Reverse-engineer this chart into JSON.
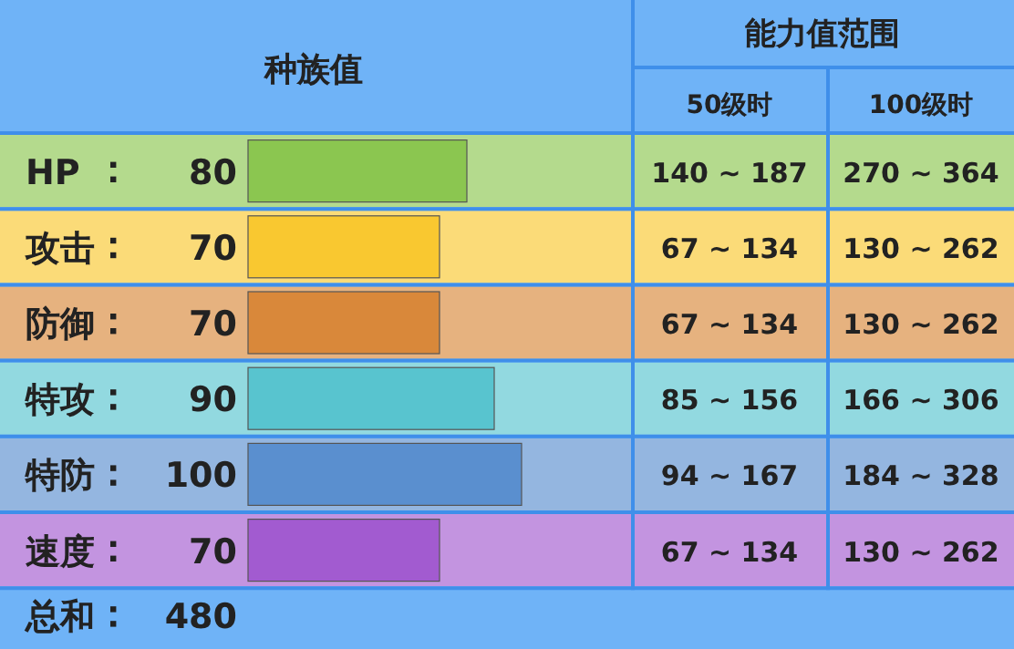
{
  "chart_data": {
    "type": "bar",
    "orientation": "horizontal",
    "title": "种族值",
    "categories": [
      "HP",
      "攻击",
      "防御",
      "特攻",
      "特防",
      "速度"
    ],
    "values": [
      80,
      70,
      70,
      90,
      100,
      70
    ],
    "colors": [
      "#8bc650",
      "#f9c830",
      "#d9883a",
      "#58c4cf",
      "#5a8fcf",
      "#a25bd0"
    ],
    "data_labels": true,
    "annotations": [
      "能力值范围",
      "50级时",
      "100级时",
      "140 ~ 187",
      "270 ~ 364",
      "67 ~ 134",
      "130 ~ 262",
      "67 ~ 134",
      "130 ~ 262",
      "85 ~ 156",
      "166 ~ 306",
      "94 ~ 167",
      "184 ~ 328",
      "67 ~ 134",
      "130 ~ 262",
      "总和",
      "480"
    ]
  }
}
